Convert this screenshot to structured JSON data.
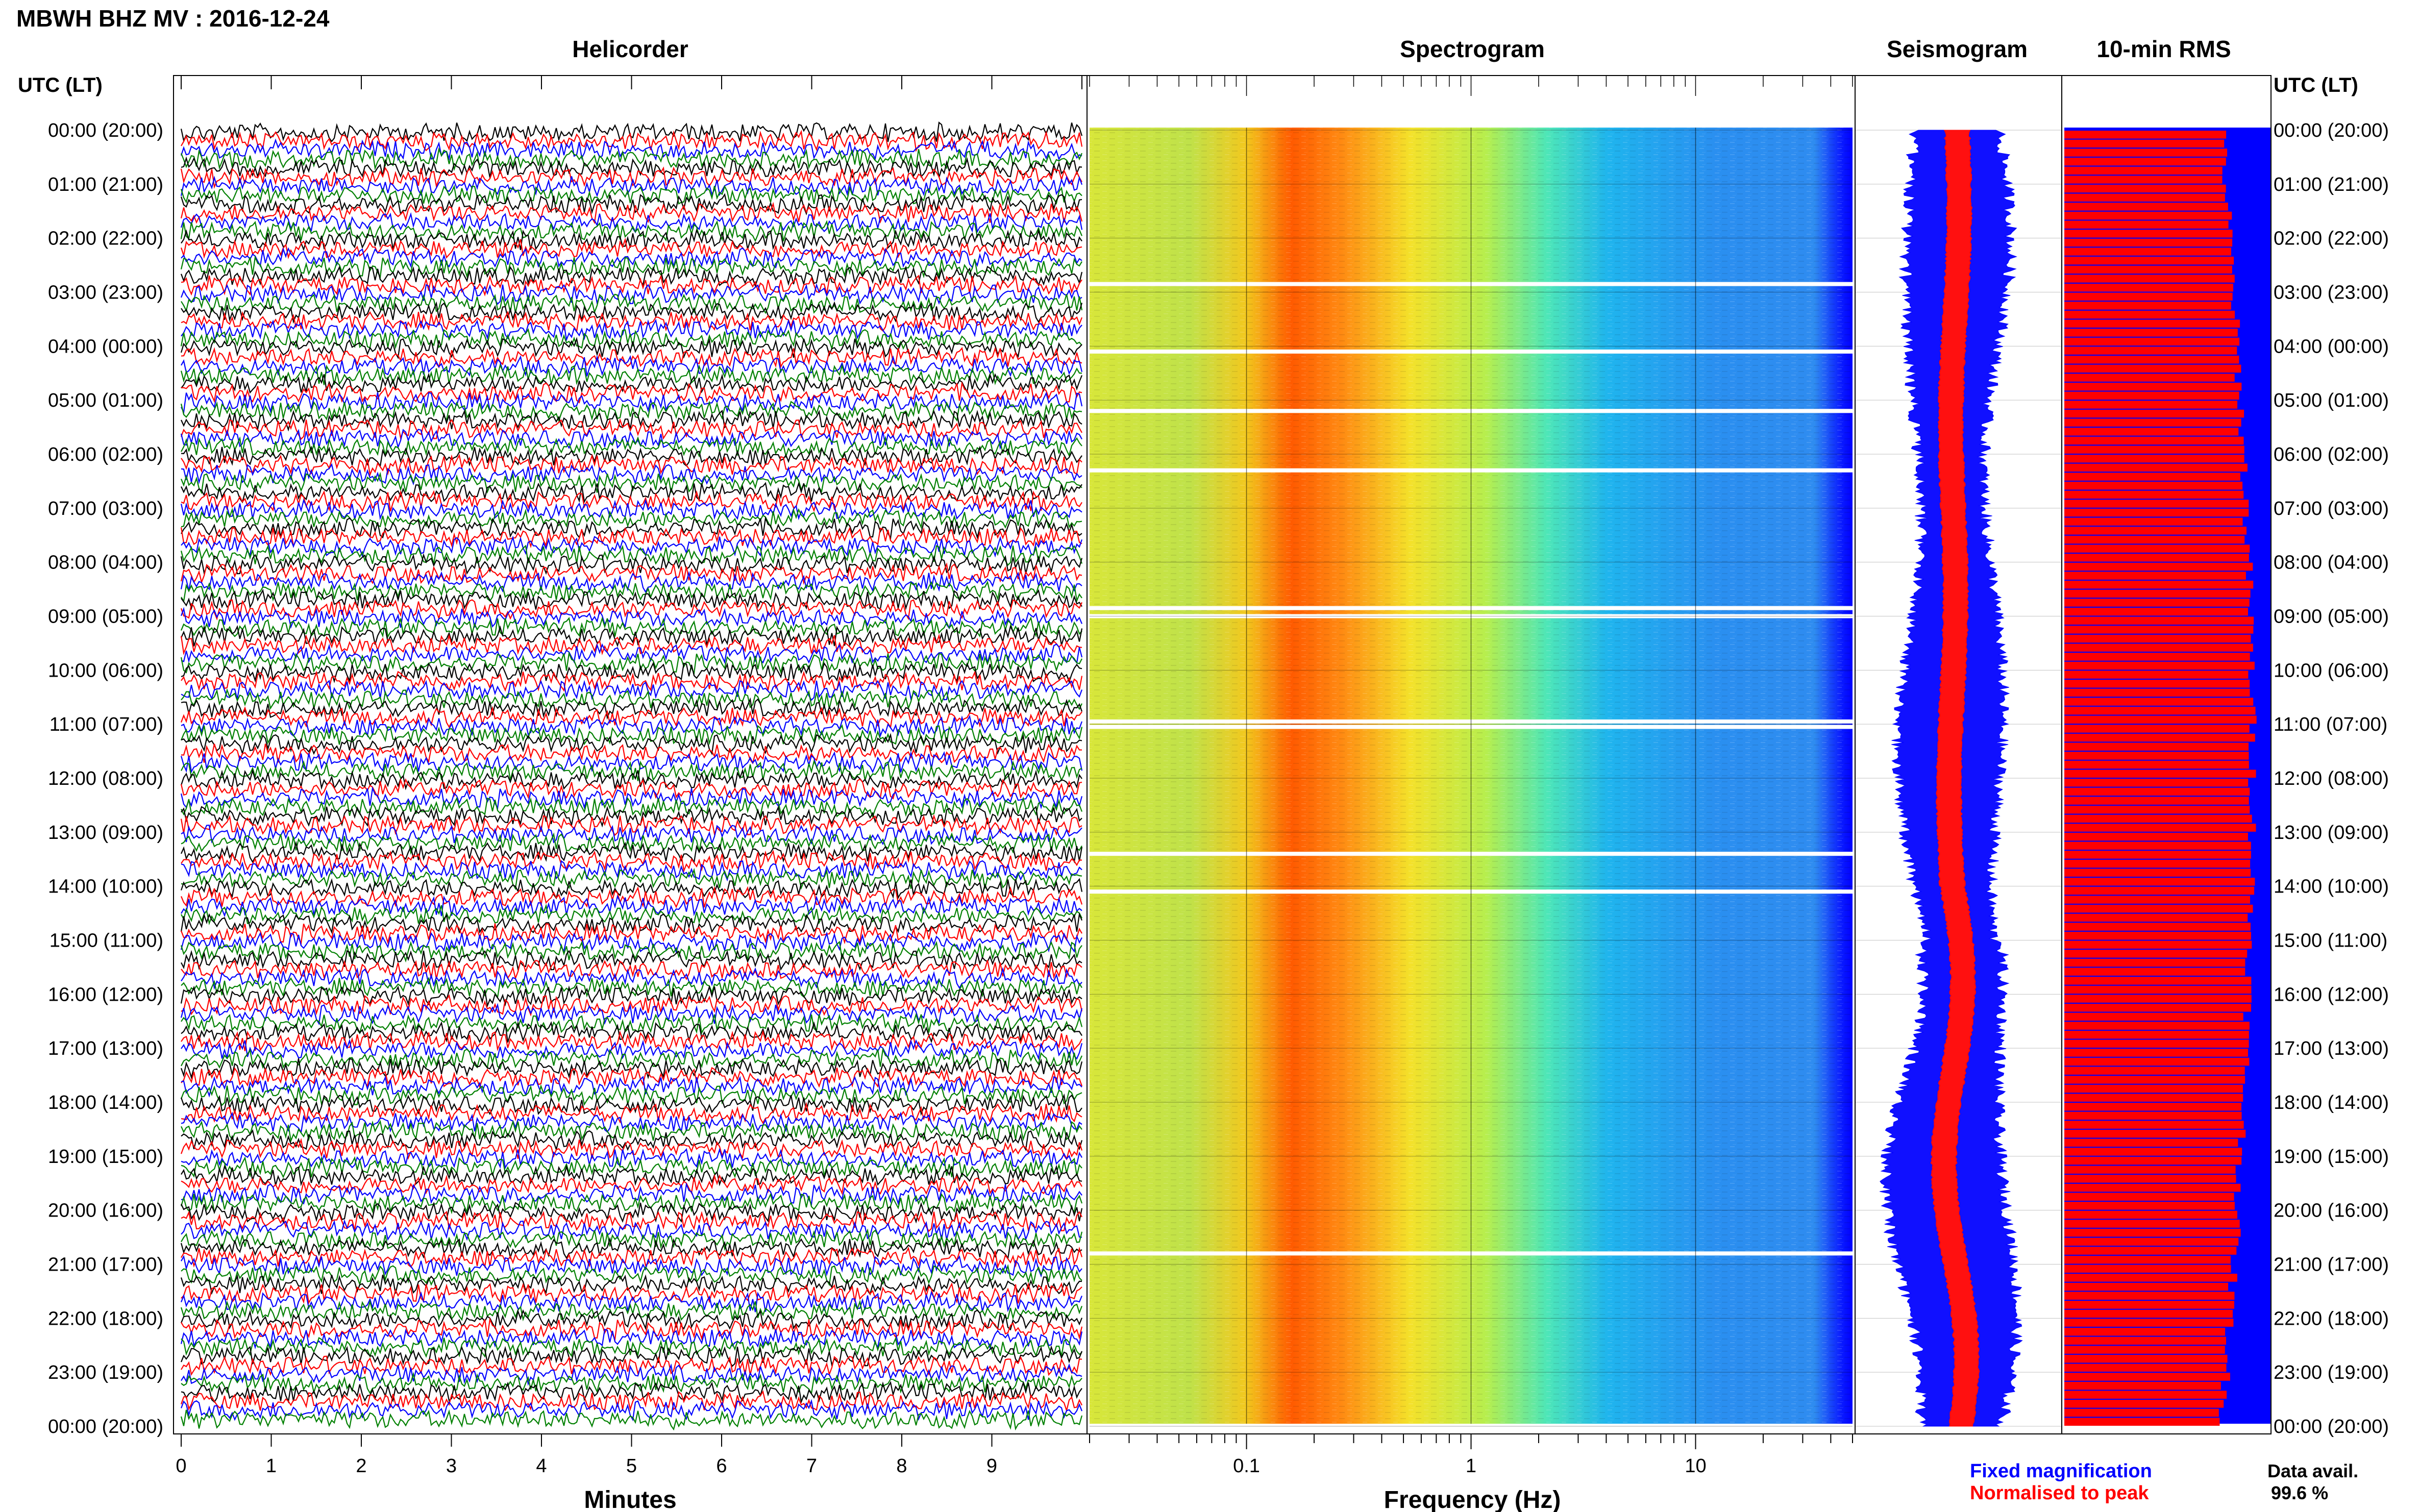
{
  "header": {
    "title": "MBWH BHZ MV : 2016-12-24"
  },
  "panels": {
    "helicorder": "Helicorder",
    "spectrogram": "Spectrogram",
    "seismogram": "Seismogram",
    "rms": "10-min RMS"
  },
  "axis": {
    "left_heading": "UTC (LT)",
    "right_heading": "UTC (LT)",
    "time_labels": [
      "00:00 (20:00)",
      "01:00 (21:00)",
      "02:00 (22:00)",
      "03:00 (23:00)",
      "04:00 (00:00)",
      "05:00 (01:00)",
      "06:00 (02:00)",
      "07:00 (03:00)",
      "08:00 (04:00)",
      "09:00 (05:00)",
      "10:00 (06:00)",
      "11:00 (07:00)",
      "12:00 (08:00)",
      "13:00 (09:00)",
      "14:00 (10:00)",
      "15:00 (11:00)",
      "16:00 (12:00)",
      "17:00 (13:00)",
      "18:00 (14:00)",
      "19:00 (15:00)",
      "20:00 (16:00)",
      "21:00 (17:00)",
      "22:00 (18:00)",
      "23:00 (19:00)",
      "00:00 (20:00)"
    ],
    "minutes_label": "Minutes",
    "minutes_ticks": [
      "0",
      "1",
      "2",
      "3",
      "4",
      "5",
      "6",
      "7",
      "8",
      "9"
    ],
    "frequency_label": "Frequency (Hz)",
    "frequency_ticks": [
      "0.1",
      "1",
      "10"
    ]
  },
  "legend": {
    "fixed": "Fixed magnification",
    "normalised": "Normalised to peak",
    "fixed_color": "#0000ff",
    "normalised_color": "#ff0000"
  },
  "availability": {
    "label": "Data avail.",
    "value": "99.6 %"
  },
  "chart_data": [
    {
      "type": "line",
      "name": "helicorder",
      "xlabel": "Minutes",
      "xlim": [
        0,
        10
      ],
      "ylim_hours": [
        0,
        24
      ],
      "trace_colors": [
        "#000000",
        "#ff0000",
        "#0000ff",
        "#008000"
      ]
    },
    {
      "type": "heatmap",
      "name": "spectrogram",
      "xlabel": "Frequency (Hz)",
      "xscale": "log",
      "xlim": [
        0.02,
        50
      ],
      "ylim_hours": [
        0,
        24
      ]
    },
    {
      "type": "area",
      "name": "seismogram",
      "series": [
        {
          "name": "Fixed magnification",
          "color": "#0000ff"
        },
        {
          "name": "Normalised to peak",
          "color": "#ff0000"
        }
      ],
      "ylim_hours": [
        0,
        24
      ]
    },
    {
      "type": "bar",
      "name": "10-min RMS",
      "colors": {
        "bar": "#ff0000",
        "background": "#0000ff"
      },
      "ylim_hours": [
        0,
        24
      ]
    }
  ]
}
